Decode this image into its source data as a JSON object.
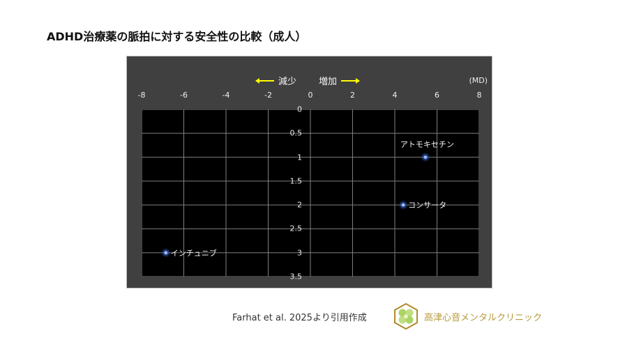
{
  "title": "ADHD治療薬の脈拍に対する安全性の比較（成人）",
  "chart_data": {
    "type": "scatter",
    "title": "ADHD治療薬の脈拍に対する安全性の比較（成人）",
    "xlabel": "(MD)",
    "ylabel": "",
    "xlim": [
      -8,
      8
    ],
    "ylim": [
      0,
      3.5
    ],
    "y_inverted": true,
    "x_axis_position": "top",
    "x_ticks": [
      "-8",
      "-6",
      "-4",
      "-2",
      "0",
      "2",
      "4",
      "6",
      "8"
    ],
    "y_ticks": [
      "0",
      "0.5",
      "1",
      "1.5",
      "2",
      "2.5",
      "3",
      "3.5"
    ],
    "grid": true,
    "annotations": {
      "decrease": "減少",
      "increase": "増加"
    },
    "points": [
      {
        "label": "アトモキセチン",
        "x": 5.45,
        "y": 1
      },
      {
        "label": "コンサータ",
        "x": 4.4,
        "y": 2
      },
      {
        "label": "インチュニブ",
        "x": -6.85,
        "y": 3
      }
    ],
    "colors": {
      "frame": "#404040",
      "plot_bg": "#000000",
      "grid": "#7f7f7f",
      "point": "#4f7fd8",
      "arrow": "#ffff00"
    }
  },
  "chart": {
    "unit": "(MD)",
    "decrease_label": "減少",
    "increase_label": "増加"
  },
  "footer": {
    "citation": "Farhat et al. 2025より引用作成",
    "clinic_name": "高津心音メンタルクリニック",
    "logo_icon": "clover-hexagon-logo"
  }
}
